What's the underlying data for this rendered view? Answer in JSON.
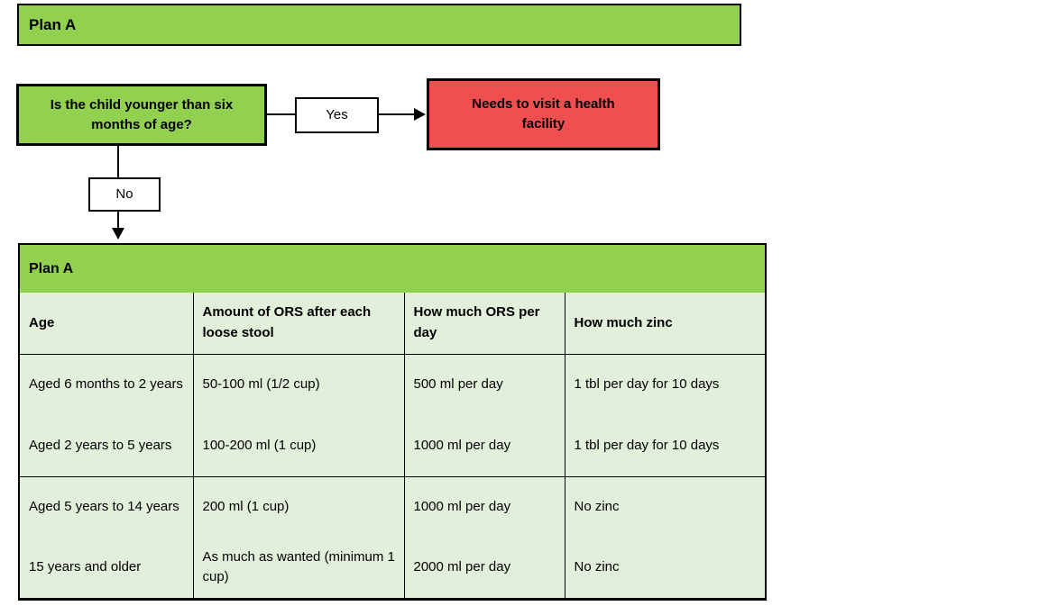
{
  "banner": {
    "title": "Plan A"
  },
  "flowchart": {
    "question": "Is the child younger than six months of age?",
    "yes_label": "Yes",
    "no_label": "No",
    "outcome": "Needs to visit a health facility"
  },
  "table": {
    "title": "Plan A",
    "columns": [
      "Age",
      "Amount of ORS after each loose stool",
      "How much ORS per day",
      "How much zinc"
    ],
    "rows": [
      [
        "Aged 6 months to 2 years",
        "50-100 ml (1/2 cup)",
        "500 ml per day",
        "1 tbl per day for 10 days"
      ],
      [
        "Aged 2 years to 5 years",
        "100-200 ml (1 cup)",
        "1000 ml per day",
        "1 tbl per day for 10 days"
      ],
      [
        "Aged 5 years to 14 years",
        "200 ml (1 cup)",
        "1000 ml per day",
        "No zinc"
      ],
      [
        "15 years and older",
        "As much as wanted (minimum 1 cup)",
        "2000 ml per day",
        "No zinc"
      ]
    ]
  },
  "colors": {
    "green": "#92D050",
    "light_green": "#E2EFDA",
    "red": "#F04F4F",
    "border": "#000000"
  }
}
